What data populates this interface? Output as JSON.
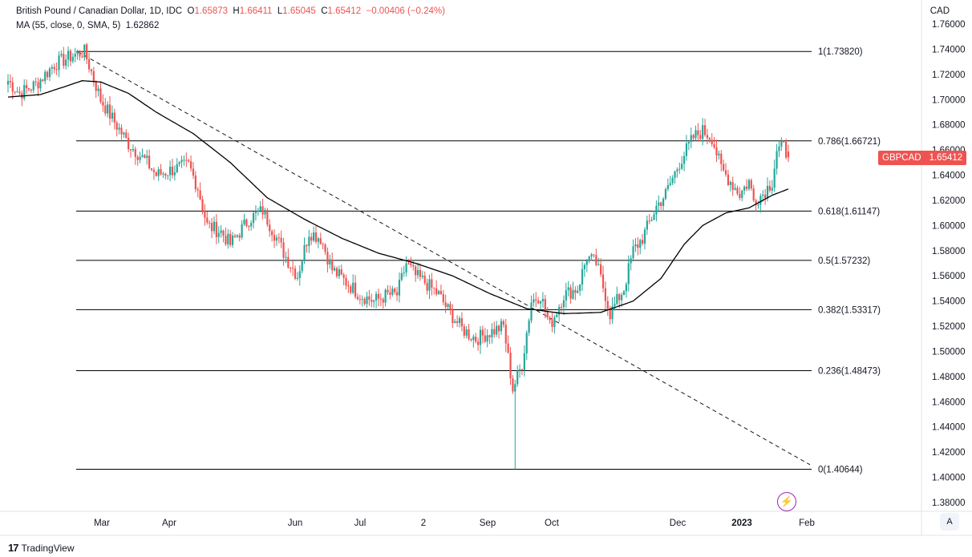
{
  "header": {
    "symbol_title": "British Pound / Canadian Dollar, 1D, IDC",
    "o_label": "O",
    "o_value": "1.65873",
    "h_label": "H",
    "h_value": "1.66411",
    "l_label": "L",
    "l_value": "1.65045",
    "c_label": "C",
    "c_value": "1.65412",
    "change": "−0.00406 (−0.24%)",
    "ma_title": "MA (55, close, 0, SMA, 5)",
    "ma_value": "1.62862"
  },
  "axis": {
    "currency": "CAD"
  },
  "price_tag": {
    "symbol": "GBPCAD",
    "price": "1.65412"
  },
  "branding": {
    "logo": "17",
    "name": "TradingView"
  },
  "controls": {
    "auto_scale": "A"
  },
  "colors": {
    "up": "#26a69a",
    "down": "#ef5350",
    "ma": "#000000",
    "fib": "#000000",
    "tag": "#ef5350",
    "bolt": "#9c27b0"
  },
  "chart_data": {
    "type": "candlestick",
    "y_axis": {
      "min": 1.37,
      "max": 1.77,
      "ticks": [
        "1.76000",
        "1.74000",
        "1.72000",
        "1.70000",
        "1.68000",
        "1.66000",
        "1.64000",
        "1.62000",
        "1.60000",
        "1.58000",
        "1.56000",
        "1.54000",
        "1.52000",
        "1.50000",
        "1.48000",
        "1.46000",
        "1.44000",
        "1.42000",
        "1.40000",
        "1.38000"
      ]
    },
    "x_axis": {
      "labels": [
        "Mar",
        "Apr",
        "Jun",
        "Jul",
        "2",
        "Sep",
        "Oct",
        "Dec",
        "2023",
        "Feb"
      ]
    },
    "fib_levels": [
      {
        "label": "1(1.73820)",
        "value": 1.7382
      },
      {
        "label": "0.786(1.66721)",
        "value": 1.66721
      },
      {
        "label": "0.618(1.61147)",
        "value": 1.61147
      },
      {
        "label": "0.5(1.57232)",
        "value": 1.57232
      },
      {
        "label": "0.382(1.53317)",
        "value": 1.53317
      },
      {
        "label": "0.236(1.48473)",
        "value": 1.48473
      },
      {
        "label": "0(1.40644)",
        "value": 1.40644
      }
    ],
    "trendline": {
      "from": 1.738,
      "to": 1.41,
      "style": "dashed"
    },
    "price_anchors": [
      [
        0,
        1.715
      ],
      [
        5,
        1.705
      ],
      [
        12,
        1.712
      ],
      [
        20,
        1.728
      ],
      [
        28,
        1.735
      ],
      [
        33,
        1.738
      ],
      [
        36,
        1.722
      ],
      [
        40,
        1.7
      ],
      [
        45,
        1.685
      ],
      [
        52,
        1.665
      ],
      [
        60,
        1.65
      ],
      [
        64,
        1.64
      ],
      [
        72,
        1.645
      ],
      [
        78,
        1.648
      ],
      [
        82,
        1.63
      ],
      [
        86,
        1.6
      ],
      [
        92,
        1.595
      ],
      [
        96,
        1.585
      ],
      [
        104,
        1.605
      ],
      [
        110,
        1.612
      ],
      [
        116,
        1.59
      ],
      [
        120,
        1.575
      ],
      [
        125,
        1.56
      ],
      [
        130,
        1.595
      ],
      [
        135,
        1.59
      ],
      [
        140,
        1.565
      ],
      [
        146,
        1.555
      ],
      [
        152,
        1.545
      ],
      [
        158,
        1.54
      ],
      [
        164,
        1.545
      ],
      [
        168,
        1.545
      ],
      [
        172,
        1.57
      ],
      [
        176,
        1.56
      ],
      [
        180,
        1.555
      ],
      [
        186,
        1.545
      ],
      [
        190,
        1.533
      ],
      [
        196,
        1.518
      ],
      [
        202,
        1.51
      ],
      [
        208,
        1.515
      ],
      [
        214,
        1.52
      ],
      [
        218,
        1.47
      ],
      [
        222,
        1.49
      ],
      [
        226,
        1.54
      ],
      [
        230,
        1.545
      ],
      [
        234,
        1.52
      ],
      [
        240,
        1.545
      ],
      [
        246,
        1.55
      ],
      [
        250,
        1.575
      ],
      [
        254,
        1.57
      ],
      [
        258,
        1.545
      ],
      [
        260,
        1.53
      ],
      [
        266,
        1.55
      ],
      [
        270,
        1.58
      ],
      [
        274,
        1.59
      ],
      [
        280,
        1.615
      ],
      [
        284,
        1.625
      ],
      [
        290,
        1.65
      ],
      [
        296,
        1.67
      ],
      [
        300,
        1.675
      ],
      [
        304,
        1.67
      ],
      [
        308,
        1.645
      ],
      [
        312,
        1.635
      ],
      [
        316,
        1.625
      ],
      [
        320,
        1.635
      ],
      [
        322,
        1.62
      ],
      [
        326,
        1.625
      ],
      [
        330,
        1.635
      ],
      [
        332,
        1.66
      ],
      [
        335,
        1.662
      ],
      [
        337,
        1.654
      ]
    ],
    "ma55_anchors": [
      [
        0,
        1.702
      ],
      [
        14,
        1.704
      ],
      [
        24,
        1.71
      ],
      [
        32,
        1.715
      ],
      [
        40,
        1.714
      ],
      [
        52,
        1.705
      ],
      [
        64,
        1.69
      ],
      [
        80,
        1.673
      ],
      [
        96,
        1.65
      ],
      [
        112,
        1.622
      ],
      [
        128,
        1.605
      ],
      [
        144,
        1.59
      ],
      [
        160,
        1.578
      ],
      [
        176,
        1.57
      ],
      [
        192,
        1.56
      ],
      [
        208,
        1.546
      ],
      [
        224,
        1.534
      ],
      [
        240,
        1.53
      ],
      [
        256,
        1.531
      ],
      [
        270,
        1.54
      ],
      [
        282,
        1.558
      ],
      [
        292,
        1.585
      ],
      [
        300,
        1.6
      ],
      [
        310,
        1.61
      ],
      [
        320,
        1.614
      ],
      [
        330,
        1.624
      ],
      [
        337,
        1.629
      ]
    ],
    "last": {
      "open": 1.65873,
      "high": 1.66411,
      "low": 1.65045,
      "close": 1.65412
    },
    "ma": {
      "name": "MA (55, close, 0, SMA, 5)",
      "last": 1.62862
    }
  }
}
